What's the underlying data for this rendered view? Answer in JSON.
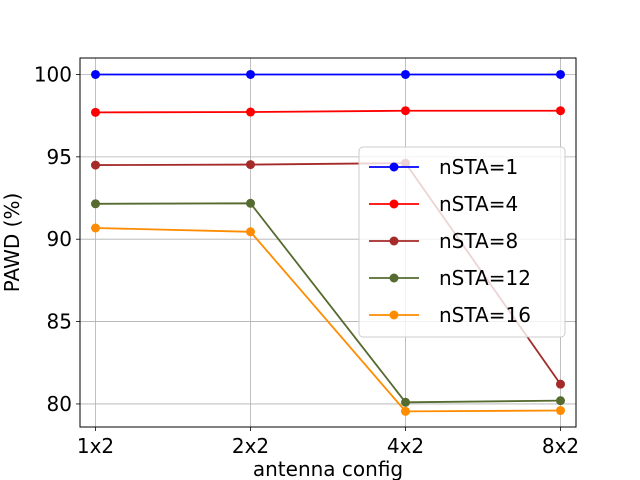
{
  "chart_data": {
    "type": "line",
    "title": "",
    "xlabel": "antenna config",
    "ylabel": "PAWD (%)",
    "categories": [
      "1x2",
      "2x2",
      "4x2",
      "8x2"
    ],
    "ylim": [
      78.6,
      101.0
    ],
    "yticks": [
      80,
      85,
      90,
      95,
      100
    ],
    "grid": true,
    "legend_position": "center-right",
    "series": [
      {
        "name": "nSTA=1",
        "color": "#0000ff",
        "values": [
          100.0,
          100.0,
          100.0,
          100.0
        ]
      },
      {
        "name": "nSTA=4",
        "color": "#ff0000",
        "values": [
          97.7,
          97.72,
          97.8,
          97.8
        ]
      },
      {
        "name": "nSTA=8",
        "color": "#a52a2a",
        "values": [
          94.5,
          94.53,
          94.62,
          81.2
        ]
      },
      {
        "name": "nSTA=12",
        "color": "#556b2f",
        "values": [
          92.15,
          92.18,
          80.1,
          80.2
        ]
      },
      {
        "name": "nSTA=16",
        "color": "#ff8c00",
        "values": [
          90.68,
          90.45,
          79.55,
          79.6
        ]
      }
    ]
  }
}
